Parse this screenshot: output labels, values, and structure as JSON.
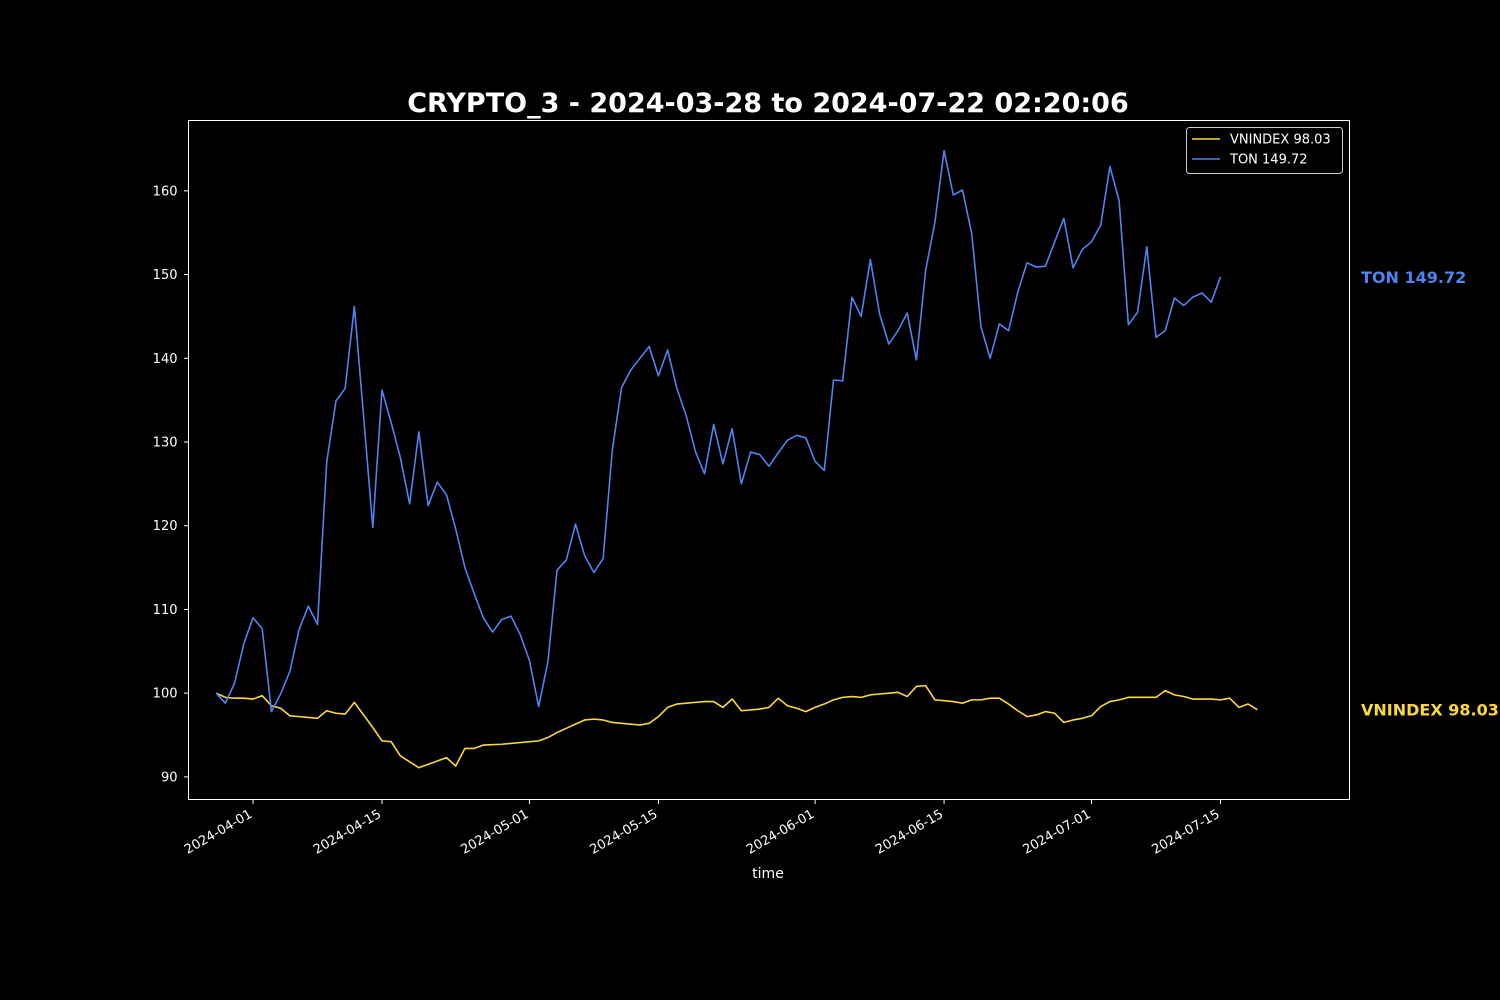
{
  "chart_data": {
    "type": "line",
    "title": "CRYPTO_3 - 2024-03-28 to 2024-07-22 02:20:06",
    "xlabel": "time",
    "ylabel": "",
    "x_type": "date",
    "xlim": [
      "2024-03-25",
      "2024-07-29"
    ],
    "ylim": [
      87.3,
      168.4
    ],
    "x_ticks": [
      "2024-04-01",
      "2024-04-15",
      "2024-05-01",
      "2024-05-15",
      "2024-06-01",
      "2024-06-15",
      "2024-07-01",
      "2024-07-15"
    ],
    "y_ticks": [
      90,
      100,
      110,
      120,
      130,
      140,
      150,
      160
    ],
    "grid": false,
    "legend_position": "top-right",
    "background": "#000000",
    "text_color": "#ffffff",
    "series": [
      {
        "name": "VNINDEX 98.03",
        "end_label": "VNINDEX 98.03",
        "color": "#fdd835",
        "points": [
          [
            "2024-03-28",
            100.0
          ],
          [
            "2024-03-29",
            99.5
          ],
          [
            "2024-03-30",
            99.4
          ],
          [
            "2024-03-31",
            99.4
          ],
          [
            "2024-04-01",
            99.3
          ],
          [
            "2024-04-02",
            99.7
          ],
          [
            "2024-04-03",
            98.5
          ],
          [
            "2024-04-04",
            98.2
          ],
          [
            "2024-04-05",
            97.3
          ],
          [
            "2024-04-06",
            97.2
          ],
          [
            "2024-04-07",
            97.1
          ],
          [
            "2024-04-08",
            97.0
          ],
          [
            "2024-04-09",
            97.9
          ],
          [
            "2024-04-10",
            97.6
          ],
          [
            "2024-04-11",
            97.5
          ],
          [
            "2024-04-12",
            98.9
          ],
          [
            "2024-04-13",
            97.4
          ],
          [
            "2024-04-14",
            95.9
          ],
          [
            "2024-04-15",
            94.3
          ],
          [
            "2024-04-16",
            94.2
          ],
          [
            "2024-04-17",
            92.5
          ],
          [
            "2024-04-18",
            91.8
          ],
          [
            "2024-04-19",
            91.1
          ],
          [
            "2024-04-20",
            91.5
          ],
          [
            "2024-04-21",
            91.9
          ],
          [
            "2024-04-22",
            92.3
          ],
          [
            "2024-04-23",
            91.3
          ],
          [
            "2024-04-24",
            93.4
          ],
          [
            "2024-04-25",
            93.4
          ],
          [
            "2024-04-26",
            93.8
          ],
          [
            "2024-04-28",
            93.9
          ],
          [
            "2024-05-02",
            94.3
          ],
          [
            "2024-05-03",
            94.7
          ],
          [
            "2024-05-04",
            95.3
          ],
          [
            "2024-05-05",
            95.8
          ],
          [
            "2024-05-06",
            96.3
          ],
          [
            "2024-05-07",
            96.8
          ],
          [
            "2024-05-08",
            96.9
          ],
          [
            "2024-05-09",
            96.8
          ],
          [
            "2024-05-10",
            96.5
          ],
          [
            "2024-05-11",
            96.4
          ],
          [
            "2024-05-12",
            96.3
          ],
          [
            "2024-05-13",
            96.2
          ],
          [
            "2024-05-14",
            96.4
          ],
          [
            "2024-05-15",
            97.2
          ],
          [
            "2024-05-16",
            98.3
          ],
          [
            "2024-05-17",
            98.7
          ],
          [
            "2024-05-18",
            98.8
          ],
          [
            "2024-05-19",
            98.9
          ],
          [
            "2024-05-20",
            99.0
          ],
          [
            "2024-05-21",
            99.0
          ],
          [
            "2024-05-22",
            98.3
          ],
          [
            "2024-05-23",
            99.3
          ],
          [
            "2024-05-24",
            97.9
          ],
          [
            "2024-05-25",
            98.0
          ],
          [
            "2024-05-26",
            98.1
          ],
          [
            "2024-05-27",
            98.3
          ],
          [
            "2024-05-28",
            99.4
          ],
          [
            "2024-05-29",
            98.5
          ],
          [
            "2024-05-30",
            98.2
          ],
          [
            "2024-05-31",
            97.8
          ],
          [
            "2024-06-01",
            98.3
          ],
          [
            "2024-06-02",
            98.7
          ],
          [
            "2024-06-03",
            99.2
          ],
          [
            "2024-06-04",
            99.5
          ],
          [
            "2024-06-05",
            99.6
          ],
          [
            "2024-06-06",
            99.5
          ],
          [
            "2024-06-07",
            99.8
          ],
          [
            "2024-06-08",
            99.9
          ],
          [
            "2024-06-09",
            100.0
          ],
          [
            "2024-06-10",
            100.1
          ],
          [
            "2024-06-11",
            99.6
          ],
          [
            "2024-06-12",
            100.8
          ],
          [
            "2024-06-13",
            100.9
          ],
          [
            "2024-06-14",
            99.2
          ],
          [
            "2024-06-15",
            99.1
          ],
          [
            "2024-06-16",
            99.0
          ],
          [
            "2024-06-17",
            98.8
          ],
          [
            "2024-06-18",
            99.2
          ],
          [
            "2024-06-19",
            99.2
          ],
          [
            "2024-06-20",
            99.4
          ],
          [
            "2024-06-21",
            99.4
          ],
          [
            "2024-06-22",
            98.7
          ],
          [
            "2024-06-23",
            97.9
          ],
          [
            "2024-06-24",
            97.2
          ],
          [
            "2024-06-25",
            97.4
          ],
          [
            "2024-06-26",
            97.8
          ],
          [
            "2024-06-27",
            97.6
          ],
          [
            "2024-06-28",
            96.5
          ],
          [
            "2024-06-29",
            96.8
          ],
          [
            "2024-06-30",
            97.0
          ],
          [
            "2024-07-01",
            97.3
          ],
          [
            "2024-07-02",
            98.4
          ],
          [
            "2024-07-03",
            99.0
          ],
          [
            "2024-07-04",
            99.2
          ],
          [
            "2024-07-05",
            99.5
          ],
          [
            "2024-07-06",
            99.5
          ],
          [
            "2024-07-07",
            99.5
          ],
          [
            "2024-07-08",
            99.5
          ],
          [
            "2024-07-09",
            100.3
          ],
          [
            "2024-07-10",
            99.8
          ],
          [
            "2024-07-11",
            99.6
          ],
          [
            "2024-07-12",
            99.3
          ],
          [
            "2024-07-13",
            99.3
          ],
          [
            "2024-07-14",
            99.3
          ],
          [
            "2024-07-15",
            99.2
          ],
          [
            "2024-07-16",
            99.4
          ],
          [
            "2024-07-17",
            98.3
          ],
          [
            "2024-07-18",
            98.7
          ],
          [
            "2024-07-19",
            98.03
          ]
        ]
      },
      {
        "name": "TON 149.72",
        "end_label": "TON 149.72",
        "color": "#4f83f1",
        "points": [
          [
            "2024-03-28",
            100.0
          ],
          [
            "2024-03-29",
            98.8
          ],
          [
            "2024-03-30",
            101.2
          ],
          [
            "2024-03-31",
            105.9
          ],
          [
            "2024-04-01",
            109.0
          ],
          [
            "2024-04-02",
            107.7
          ],
          [
            "2024-04-03",
            97.8
          ],
          [
            "2024-04-04",
            99.9
          ],
          [
            "2024-04-05",
            102.6
          ],
          [
            "2024-04-06",
            107.6
          ],
          [
            "2024-04-07",
            110.4
          ],
          [
            "2024-04-08",
            108.2
          ],
          [
            "2024-04-09",
            127.6
          ],
          [
            "2024-04-10",
            134.9
          ],
          [
            "2024-04-11",
            136.4
          ],
          [
            "2024-04-12",
            146.2
          ],
          [
            "2024-04-13",
            133.1
          ],
          [
            "2024-04-14",
            119.8
          ],
          [
            "2024-04-15",
            136.2
          ],
          [
            "2024-04-16",
            132.3
          ],
          [
            "2024-04-17",
            128.1
          ],
          [
            "2024-04-18",
            122.6
          ],
          [
            "2024-04-19",
            131.2
          ],
          [
            "2024-04-20",
            122.4
          ],
          [
            "2024-04-21",
            125.2
          ],
          [
            "2024-04-22",
            123.7
          ],
          [
            "2024-04-23",
            119.6
          ],
          [
            "2024-04-24",
            115.0
          ],
          [
            "2024-04-25",
            111.9
          ],
          [
            "2024-04-26",
            109.0
          ],
          [
            "2024-04-27",
            107.3
          ],
          [
            "2024-04-28",
            108.8
          ],
          [
            "2024-04-29",
            109.2
          ],
          [
            "2024-04-30",
            107.0
          ],
          [
            "2024-05-01",
            103.9
          ],
          [
            "2024-05-02",
            98.4
          ],
          [
            "2024-05-03",
            103.7
          ],
          [
            "2024-05-04",
            114.7
          ],
          [
            "2024-05-05",
            115.9
          ],
          [
            "2024-05-06",
            120.2
          ],
          [
            "2024-05-07",
            116.4
          ],
          [
            "2024-05-08",
            114.4
          ],
          [
            "2024-05-09",
            116.1
          ],
          [
            "2024-05-10",
            129.1
          ],
          [
            "2024-05-11",
            136.5
          ],
          [
            "2024-05-12",
            138.6
          ],
          [
            "2024-05-13",
            140.0
          ],
          [
            "2024-05-14",
            141.4
          ],
          [
            "2024-05-15",
            137.9
          ],
          [
            "2024-05-16",
            141.0
          ],
          [
            "2024-05-17",
            136.4
          ],
          [
            "2024-05-18",
            133.2
          ],
          [
            "2024-05-19",
            128.9
          ],
          [
            "2024-05-20",
            126.2
          ],
          [
            "2024-05-21",
            132.1
          ],
          [
            "2024-05-22",
            127.4
          ],
          [
            "2024-05-23",
            131.6
          ],
          [
            "2024-05-24",
            125.0
          ],
          [
            "2024-05-25",
            128.8
          ],
          [
            "2024-05-26",
            128.5
          ],
          [
            "2024-05-27",
            127.1
          ],
          [
            "2024-05-28",
            128.7
          ],
          [
            "2024-05-29",
            130.2
          ],
          [
            "2024-05-30",
            130.8
          ],
          [
            "2024-05-31",
            130.5
          ],
          [
            "2024-06-01",
            127.7
          ],
          [
            "2024-06-02",
            126.6
          ],
          [
            "2024-06-03",
            137.4
          ],
          [
            "2024-06-04",
            137.3
          ],
          [
            "2024-06-05",
            147.3
          ],
          [
            "2024-06-06",
            145.0
          ],
          [
            "2024-06-07",
            151.8
          ],
          [
            "2024-06-08",
            145.3
          ],
          [
            "2024-06-09",
            141.7
          ],
          [
            "2024-06-10",
            143.3
          ],
          [
            "2024-06-11",
            145.4
          ],
          [
            "2024-06-12",
            139.8
          ],
          [
            "2024-06-13",
            150.5
          ],
          [
            "2024-06-14",
            156.2
          ],
          [
            "2024-06-15",
            164.8
          ],
          [
            "2024-06-16",
            159.5
          ],
          [
            "2024-06-17",
            160.1
          ],
          [
            "2024-06-18",
            154.9
          ],
          [
            "2024-06-19",
            143.8
          ],
          [
            "2024-06-20",
            140.0
          ],
          [
            "2024-06-21",
            144.1
          ],
          [
            "2024-06-22",
            143.3
          ],
          [
            "2024-06-23",
            147.9
          ],
          [
            "2024-06-24",
            151.4
          ],
          [
            "2024-06-25",
            150.9
          ],
          [
            "2024-06-26",
            151.0
          ],
          [
            "2024-06-27",
            153.9
          ],
          [
            "2024-06-28",
            156.7
          ],
          [
            "2024-06-29",
            150.8
          ],
          [
            "2024-06-30",
            153.0
          ],
          [
            "2024-07-01",
            153.9
          ],
          [
            "2024-07-02",
            155.9
          ],
          [
            "2024-07-03",
            162.9
          ],
          [
            "2024-07-04",
            158.8
          ],
          [
            "2024-07-05",
            144.0
          ],
          [
            "2024-07-06",
            145.5
          ],
          [
            "2024-07-07",
            153.3
          ],
          [
            "2024-07-08",
            142.5
          ],
          [
            "2024-07-09",
            143.3
          ],
          [
            "2024-07-10",
            147.2
          ],
          [
            "2024-07-11",
            146.3
          ],
          [
            "2024-07-12",
            147.3
          ],
          [
            "2024-07-13",
            147.8
          ],
          [
            "2024-07-14",
            146.7
          ],
          [
            "2024-07-15",
            149.72
          ]
        ]
      }
    ]
  }
}
